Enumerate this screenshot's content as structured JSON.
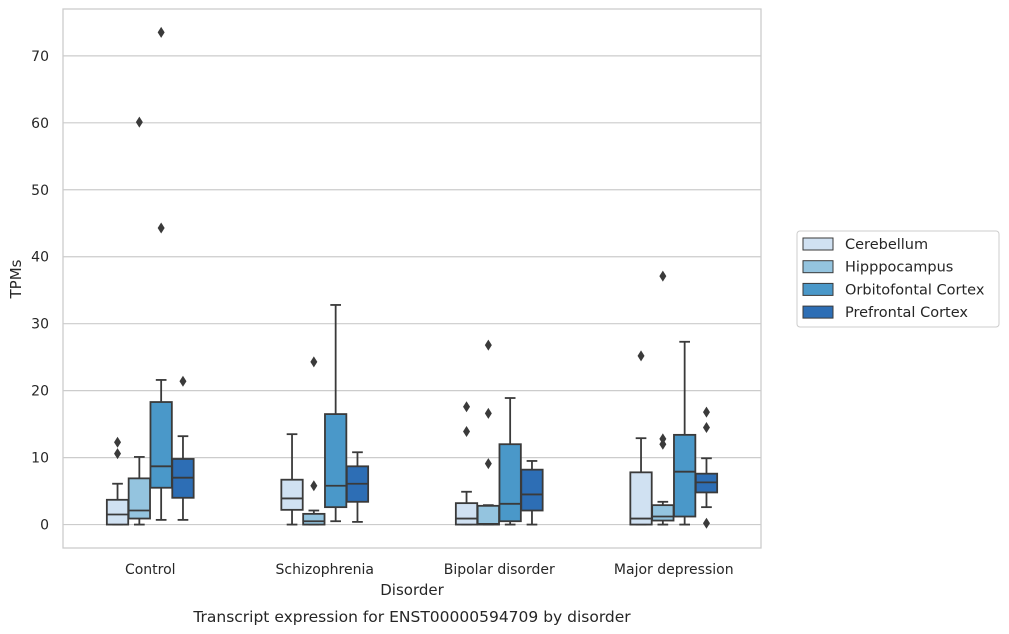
{
  "chart_data": {
    "type": "boxplot",
    "xlabel": "Disorder",
    "ylabel": "TPMs",
    "caption": "Transcript expression for ENST00000594709 by disorder",
    "ylim": [
      -3.5,
      77
    ],
    "yticks": [
      "0",
      "10",
      "20",
      "30",
      "40",
      "50",
      "60",
      "70"
    ],
    "grid": "horizontal",
    "legend_position": "right",
    "categories": [
      "Control",
      "Schizophrenia",
      "Bipolar disorder",
      "Major depression"
    ],
    "series": [
      {
        "name": "Cerebellum",
        "color": "#d0e1f2",
        "boxes": [
          {
            "whisker_low": 0,
            "q1": 0,
            "median": 1.5,
            "q3": 3.7,
            "whisker_high": 6.1,
            "outliers": [
              10.6,
              12.3
            ]
          },
          {
            "whisker_low": 0,
            "q1": 2.2,
            "median": 3.9,
            "q3": 6.7,
            "whisker_high": 13.5,
            "outliers": []
          },
          {
            "whisker_low": 0,
            "q1": 0,
            "median": 0.9,
            "q3": 3.2,
            "whisker_high": 4.9,
            "outliers": [
              13.9,
              17.6
            ]
          },
          {
            "whisker_low": 0,
            "q1": 0,
            "median": 0.9,
            "q3": 7.8,
            "whisker_high": 12.9,
            "outliers": [
              25.2
            ]
          }
        ]
      },
      {
        "name": "Hipppocampus",
        "color": "#94c4df",
        "boxes": [
          {
            "whisker_low": 0,
            "q1": 0.9,
            "median": 2.1,
            "q3": 6.9,
            "whisker_high": 10.1,
            "outliers": [
              60.1
            ]
          },
          {
            "whisker_low": 0,
            "q1": 0,
            "median": 0.5,
            "q3": 1.6,
            "whisker_high": 2.1,
            "outliers": [
              5.8,
              24.3
            ]
          },
          {
            "whisker_low": 0,
            "q1": 0,
            "median": 0.1,
            "q3": 2.8,
            "whisker_high": 2.9,
            "outliers": [
              9.1,
              16.6,
              26.8
            ]
          },
          {
            "whisker_low": 0,
            "q1": 0.6,
            "median": 1.2,
            "q3": 2.9,
            "whisker_high": 3.4,
            "outliers": [
              12.0,
              12.8,
              37.1
            ]
          }
        ]
      },
      {
        "name": "Orbitofontal Cortex",
        "color": "#4a98c9",
        "boxes": [
          {
            "whisker_low": 0.7,
            "q1": 5.5,
            "median": 8.7,
            "q3": 18.3,
            "whisker_high": 21.6,
            "outliers": [
              44.3,
              73.5
            ]
          },
          {
            "whisker_low": 0.5,
            "q1": 2.6,
            "median": 5.8,
            "q3": 16.5,
            "whisker_high": 32.8,
            "outliers": []
          },
          {
            "whisker_low": 0,
            "q1": 0.5,
            "median": 3.1,
            "q3": 12.0,
            "whisker_high": 18.9,
            "outliers": []
          },
          {
            "whisker_low": 0,
            "q1": 1.2,
            "median": 7.9,
            "q3": 13.4,
            "whisker_high": 27.3,
            "outliers": []
          }
        ]
      },
      {
        "name": "Prefrontal Cortex",
        "color": "#2d6eb5",
        "boxes": [
          {
            "whisker_low": 0.7,
            "q1": 4.0,
            "median": 7.0,
            "q3": 9.8,
            "whisker_high": 13.2,
            "outliers": [
              21.4
            ]
          },
          {
            "whisker_low": 0.4,
            "q1": 3.4,
            "median": 6.1,
            "q3": 8.7,
            "whisker_high": 10.8,
            "outliers": []
          },
          {
            "whisker_low": 0,
            "q1": 2.1,
            "median": 4.5,
            "q3": 8.2,
            "whisker_high": 9.5,
            "outliers": []
          },
          {
            "whisker_low": 2.6,
            "q1": 4.8,
            "median": 6.3,
            "q3": 7.6,
            "whisker_high": 9.9,
            "outliers": [
              0.2,
              14.5,
              16.8
            ]
          }
        ]
      }
    ]
  }
}
